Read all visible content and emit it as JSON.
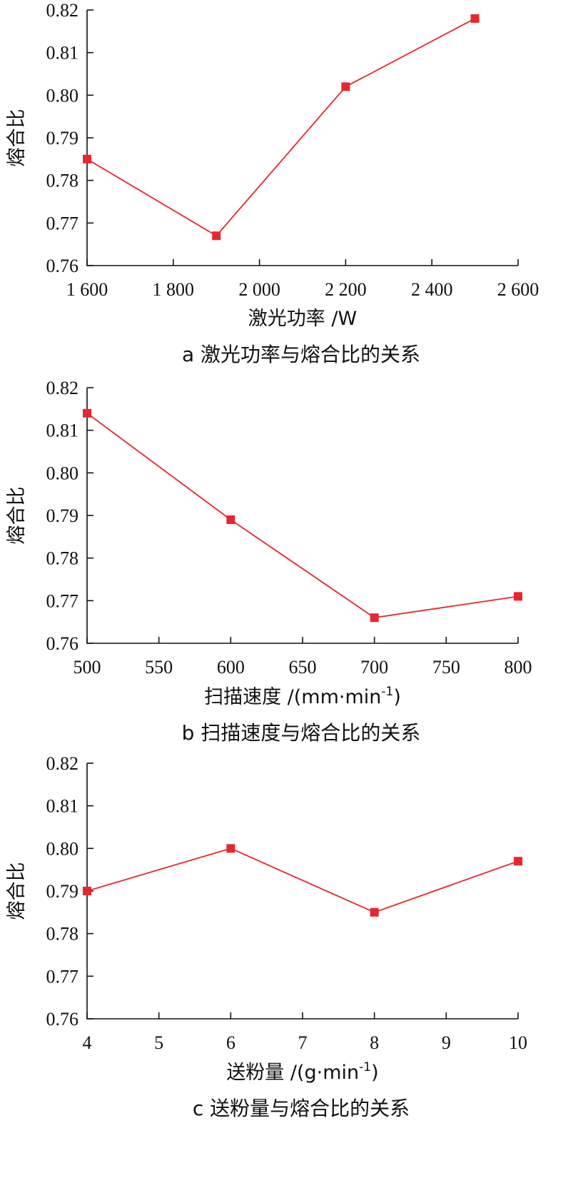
{
  "colors": {
    "series": "#e8262e",
    "axis": "#111111"
  },
  "chart_data": [
    {
      "type": "line",
      "x": [
        1600,
        1900,
        2200,
        2500
      ],
      "values": [
        0.785,
        0.767,
        0.802,
        0.818
      ],
      "xlim": [
        1600,
        2600
      ],
      "ylim": [
        0.76,
        0.82
      ],
      "x_ticks": [
        1600,
        1800,
        2000,
        2200,
        2400,
        2600
      ],
      "x_tick_labels": [
        "1 600",
        "1 800",
        "2 000",
        "2 200",
        "2 400",
        "2 600"
      ],
      "y_ticks": [
        0.76,
        0.77,
        0.78,
        0.79,
        0.8,
        0.81,
        0.82
      ],
      "y_tick_labels": [
        "0.76",
        "0.77",
        "0.78",
        "0.79",
        "0.80",
        "0.81",
        "0.82"
      ],
      "ylabel": "熔合比",
      "xlabel": "激光功率 /W",
      "caption": "a 激光功率与熔合比的关系",
      "marker": "square",
      "grid": false
    },
    {
      "type": "line",
      "x": [
        500,
        600,
        700,
        800
      ],
      "values": [
        0.814,
        0.789,
        0.766,
        0.771
      ],
      "xlim": [
        500,
        800
      ],
      "ylim": [
        0.76,
        0.82
      ],
      "x_ticks": [
        500,
        550,
        600,
        650,
        700,
        750,
        800
      ],
      "x_tick_labels": [
        "500",
        "550",
        "600",
        "650",
        "700",
        "750",
        "800"
      ],
      "y_ticks": [
        0.76,
        0.77,
        0.78,
        0.79,
        0.8,
        0.81,
        0.82
      ],
      "y_tick_labels": [
        "0.76",
        "0.77",
        "0.78",
        "0.79",
        "0.80",
        "0.81",
        "0.82"
      ],
      "ylabel": "熔合比",
      "xlabel": "扫描速度 /(mm·min",
      "xlabel_sup": "-1",
      "xlabel_tail": ")",
      "caption": "b 扫描速度与熔合比的关系",
      "marker": "square",
      "grid": false
    },
    {
      "type": "line",
      "x": [
        4,
        6,
        8,
        10
      ],
      "values": [
        0.79,
        0.8,
        0.785,
        0.797
      ],
      "xlim": [
        4,
        10
      ],
      "ylim": [
        0.76,
        0.82
      ],
      "x_ticks": [
        4,
        5,
        6,
        7,
        8,
        9,
        10
      ],
      "x_tick_labels": [
        "4",
        "5",
        "6",
        "7",
        "8",
        "9",
        "10"
      ],
      "y_ticks": [
        0.76,
        0.77,
        0.78,
        0.79,
        0.8,
        0.81,
        0.82
      ],
      "y_tick_labels": [
        "0.76",
        "0.77",
        "0.78",
        "0.79",
        "0.80",
        "0.81",
        "0.82"
      ],
      "ylabel": "熔合比",
      "xlabel": "送粉量 /(g·min",
      "xlabel_sup": "-1",
      "xlabel_tail": ")",
      "caption": "c 送粉量与熔合比的关系",
      "marker": "square",
      "grid": false
    }
  ]
}
